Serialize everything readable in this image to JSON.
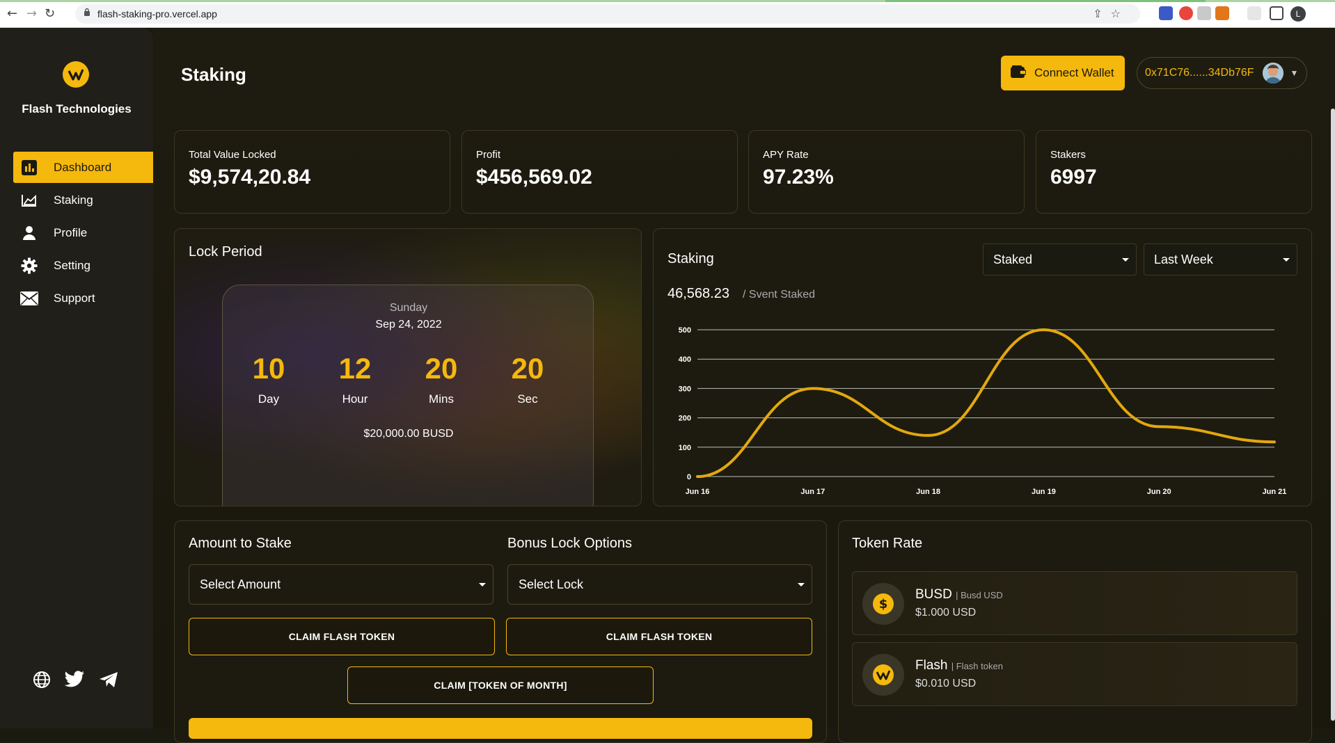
{
  "browser": {
    "url": "flash-staking-pro.vercel.app",
    "back": "←",
    "forward": "→",
    "reload": "↻",
    "profile_initial": "L"
  },
  "sidebar": {
    "brand": "Flash Technologies",
    "items": [
      {
        "label": "Dashboard",
        "icon": "bar-chart-icon",
        "active": true
      },
      {
        "label": "Staking",
        "icon": "line-chart-icon",
        "active": false
      },
      {
        "label": "Profile",
        "icon": "user-icon",
        "active": false
      },
      {
        "label": "Setting",
        "icon": "gear-icon",
        "active": false
      },
      {
        "label": "Support",
        "icon": "mail-icon",
        "active": false
      }
    ],
    "social": [
      "globe-icon",
      "twitter-icon",
      "telegram-icon"
    ]
  },
  "header": {
    "title": "Staking",
    "connect_label": "Connect Wallet",
    "address": "0x71C76......34Db76F"
  },
  "stats": [
    {
      "label": "Total Value Locked",
      "value": "$9,574,20.84"
    },
    {
      "label": "Profit",
      "value": "$456,569.02"
    },
    {
      "label": "APY Rate",
      "value": "97.23%"
    },
    {
      "label": "Stakers",
      "value": "6997"
    }
  ],
  "lock": {
    "title": "Lock Period",
    "day": "Sunday",
    "date": "Sep 24, 2022",
    "countdown": [
      {
        "num": "10",
        "label": "Day"
      },
      {
        "num": "12",
        "label": "Hour"
      },
      {
        "num": "20",
        "label": "Mins"
      },
      {
        "num": "20",
        "label": "Sec"
      }
    ],
    "amount": "$20,000.00 BUSD"
  },
  "staking": {
    "title": "Staking",
    "filter_type": "Staked",
    "filter_period": "Last Week",
    "total": "46,568.23",
    "total_sub": "/ Svent Staked"
  },
  "chart_data": {
    "type": "line",
    "x": [
      "Jun 16",
      "Jun 17",
      "Jun 18",
      "Jun 19",
      "Jun 20",
      "Jun 21"
    ],
    "series": [
      {
        "values": [
          0,
          300,
          140,
          500,
          170,
          118
        ]
      }
    ],
    "yticks": [
      "0",
      "100",
      "200",
      "300",
      "400",
      "500"
    ],
    "ylim": [
      0,
      500
    ],
    "grid": true,
    "color": "#e3a80e"
  },
  "stake_form": {
    "amount_title": "Amount to Stake",
    "bonus_title": "Bonus Lock Options",
    "amount_placeholder": "Select Amount",
    "lock_placeholder": "Select Lock",
    "claim1": "CLAIM FLASH TOKEN",
    "claim2": "CLAIM FLASH TOKEN",
    "claim_month": "CLAIM [TOKEN OF MONTH]"
  },
  "token_rate": {
    "title": "Token Rate",
    "tokens": [
      {
        "name": "BUSD",
        "sub": "| Busd USD",
        "price": "$1.000 USD",
        "icon": "dollar-coin-icon"
      },
      {
        "name": "Flash",
        "sub": "| Flash token",
        "price": "$0.010 USD",
        "icon": "flash-logo-icon"
      }
    ]
  },
  "colors": {
    "accent": "#f5b80c",
    "background": "#1b1a10",
    "sidebar": "#201f19"
  }
}
